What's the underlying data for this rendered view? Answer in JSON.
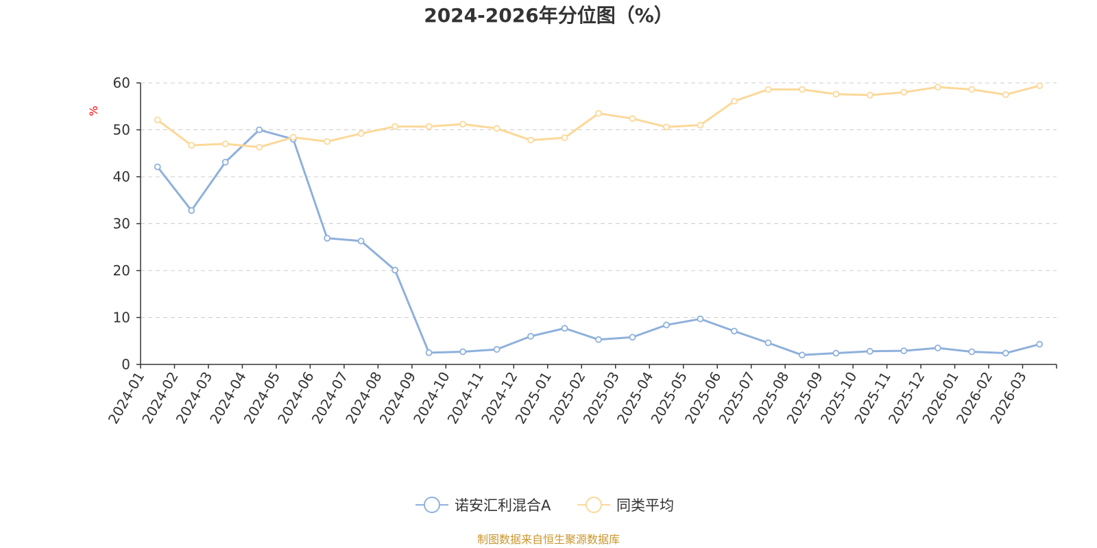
{
  "chart_data": {
    "type": "line",
    "title": "2024-2026年分位图（%）",
    "ylabel": "%",
    "ylim": [
      0,
      60
    ],
    "yticks": [
      0,
      10,
      20,
      30,
      40,
      50,
      60
    ],
    "grid": true,
    "legend_position": "bottom-center",
    "categories": [
      "2024-01",
      "2024-02",
      "2024-03",
      "2024-04",
      "2024-05",
      "2024-06",
      "2024-07",
      "2024-08",
      "2024-09",
      "2024-10",
      "2024-11",
      "2024-12",
      "2025-01",
      "2025-02",
      "2025-03",
      "2025-04",
      "2025-05",
      "2025-06",
      "2025-07",
      "2025-08",
      "2025-09",
      "2025-10",
      "2025-11",
      "2025-12",
      "2026-01",
      "2026-02",
      "2026-03"
    ],
    "series": [
      {
        "name": "诺安汇利混合A",
        "color": "#8eb0dc",
        "values": [
          42.1,
          32.8,
          43.1,
          50.0,
          48.0,
          26.9,
          26.3,
          20.1,
          2.5,
          2.7,
          3.2,
          6.0,
          7.7,
          5.3,
          5.8,
          8.4,
          9.7,
          7.1,
          4.6,
          2.0,
          2.4,
          2.8,
          2.9,
          3.5,
          2.7,
          2.4,
          4.3
        ]
      },
      {
        "name": "同类平均",
        "color": "#fcd898",
        "values": [
          52.1,
          46.7,
          47.0,
          46.3,
          48.4,
          47.5,
          49.2,
          50.7,
          50.7,
          51.2,
          50.3,
          47.8,
          48.3,
          53.5,
          52.4,
          50.6,
          51.0,
          56.1,
          58.6,
          58.6,
          57.6,
          57.4,
          58.0,
          59.1,
          58.6,
          57.5,
          59.4
        ]
      }
    ]
  },
  "source_text": "制图数据来自恒生聚源数据库",
  "colors": {
    "unit_label": "#ff0000",
    "source_text": "#c8962e",
    "axis": "#333333",
    "grid": "#cccccc"
  }
}
